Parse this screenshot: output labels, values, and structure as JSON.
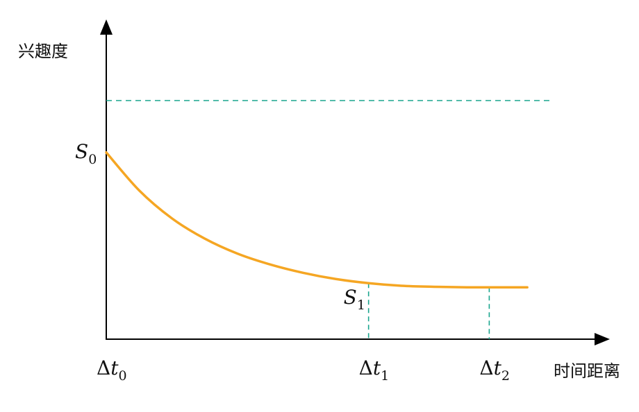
{
  "chart_data": {
    "type": "line",
    "ylabel": "兴趣度",
    "xlabel": "时间距离",
    "xlim": [
      0,
      3.85
    ],
    "ylim": [
      0,
      4.6
    ],
    "grid": false,
    "legend": "none",
    "curve": {
      "color": "#F5A623",
      "x": [
        0,
        0.25,
        0.5,
        0.75,
        1.0,
        1.25,
        1.5,
        1.75,
        2.0,
        2.25,
        2.5,
        2.75,
        3.0,
        3.21
      ],
      "y": [
        3.6,
        2.87,
        2.33,
        1.94,
        1.65,
        1.44,
        1.28,
        1.16,
        1.08,
        1.03,
        1.01,
        1.0,
        1.0,
        1.0
      ]
    },
    "reference_line": {
      "y": 4.6,
      "color": "#1AA58E",
      "style": "dashed",
      "x_end": 3.38
    },
    "y_annotations": [
      {
        "main": "S",
        "sub": "0",
        "y": 3.6
      }
    ],
    "point_annotations": [
      {
        "main": "S",
        "sub": "1",
        "x": 2.0,
        "y": 1.08
      }
    ],
    "x_markers": [
      {
        "main": "Δt",
        "sub": "0",
        "x": 0
      },
      {
        "main": "Δt",
        "sub": "1",
        "x": 2.0
      },
      {
        "main": "Δt",
        "sub": "2",
        "x": 2.92
      }
    ],
    "marker_color": "#1AA58E"
  }
}
